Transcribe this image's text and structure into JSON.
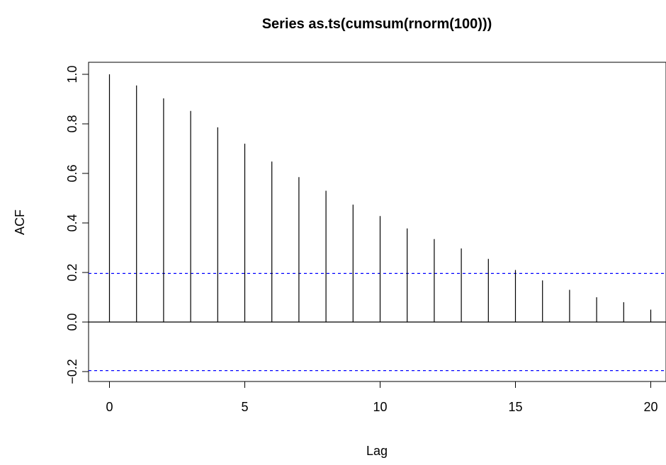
{
  "chart_data": {
    "type": "bar",
    "title": "Series  as.ts(cumsum(rnorm(100)))",
    "xlabel": "Lag",
    "ylabel": "ACF",
    "xlim": [
      -0.8,
      20.2
    ],
    "ylim": [
      -0.25,
      1.05
    ],
    "x_ticks": [
      0,
      5,
      10,
      15,
      20
    ],
    "y_ticks": [
      -0.2,
      0.0,
      0.2,
      0.4,
      0.6,
      0.8,
      1.0
    ],
    "y_tick_labels": [
      "−0.2",
      "0.0",
      "0.2",
      "0.4",
      "0.6",
      "0.8",
      "1.0"
    ],
    "lags": [
      0,
      1,
      2,
      3,
      4,
      5,
      6,
      7,
      8,
      9,
      10,
      11,
      12,
      13,
      14,
      15,
      16,
      17,
      18,
      19,
      20
    ],
    "acf": [
      1.0,
      0.955,
      0.903,
      0.852,
      0.786,
      0.72,
      0.648,
      0.585,
      0.53,
      0.474,
      0.428,
      0.378,
      0.335,
      0.297,
      0.255,
      0.21,
      0.168,
      0.13,
      0.1,
      0.08,
      0.05
    ],
    "confidence_bounds": [
      0.196,
      -0.196
    ],
    "bound_color": "#0000ff",
    "stick_color": "#000000",
    "grid": false,
    "legend": "none"
  }
}
